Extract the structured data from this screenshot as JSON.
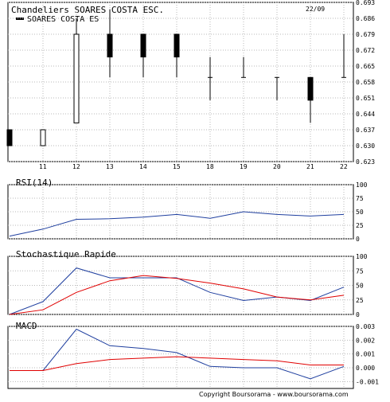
{
  "chart_data": [
    {
      "type": "candlestick",
      "title": "Chandeliers  SOARES COSTA ESC.",
      "date_label": "22/09",
      "legend": "SOARES COSTA ES",
      "x": [
        "11",
        "12",
        "13",
        "14",
        "15",
        "18",
        "19",
        "20",
        "21",
        "22"
      ],
      "ohlc": [
        {
          "x": "",
          "open": 0.637,
          "high": 0.637,
          "low": 0.63,
          "close": 0.63
        },
        {
          "x": "11",
          "open": 0.63,
          "high": 0.637,
          "low": 0.63,
          "close": 0.637
        },
        {
          "x": "12",
          "open": 0.64,
          "high": 0.686,
          "low": 0.64,
          "close": 0.679
        },
        {
          "x": "13",
          "open": 0.679,
          "high": 0.69,
          "low": 0.66,
          "close": 0.669
        },
        {
          "x": "14",
          "open": 0.679,
          "high": 0.679,
          "low": 0.66,
          "close": 0.669
        },
        {
          "x": "15",
          "open": 0.679,
          "high": 0.679,
          "low": 0.66,
          "close": 0.669
        },
        {
          "x": "18",
          "open": 0.66,
          "high": 0.669,
          "low": 0.65,
          "close": 0.66
        },
        {
          "x": "19",
          "open": 0.66,
          "high": 0.669,
          "low": 0.66,
          "close": 0.66
        },
        {
          "x": "20",
          "open": 0.66,
          "high": 0.66,
          "low": 0.65,
          "close": 0.66
        },
        {
          "x": "21",
          "open": 0.66,
          "high": 0.66,
          "low": 0.64,
          "close": 0.65
        },
        {
          "x": "22",
          "open": 0.66,
          "high": 0.679,
          "low": 0.66,
          "close": 0.66
        }
      ],
      "y_ticks": [
        "0.693",
        "0.686",
        "0.679",
        "0.672",
        "0.665",
        "0.658",
        "0.651",
        "0.644",
        "0.637",
        "0.630",
        "0.623"
      ],
      "ylim": [
        0.623,
        0.693
      ]
    },
    {
      "type": "line",
      "title": "RSI(14)",
      "y_ticks": [
        "100",
        "75",
        "50",
        "25",
        "0"
      ],
      "ylim": [
        0,
        100
      ],
      "series": [
        {
          "color": "#1f3f9f",
          "values": [
            5,
            18,
            36,
            37,
            40,
            45,
            38,
            50,
            45,
            42,
            45
          ]
        }
      ]
    },
    {
      "type": "line",
      "title": "Stochastique Rapide",
      "y_ticks": [
        "100",
        "75",
        "50",
        "25",
        "0"
      ],
      "ylim": [
        0,
        100
      ],
      "series": [
        {
          "color": "#1f3f9f",
          "values": [
            0,
            22,
            80,
            63,
            63,
            63,
            38,
            24,
            30,
            24,
            47
          ]
        },
        {
          "color": "#e00000",
          "values": [
            0,
            8,
            38,
            58,
            67,
            62,
            54,
            44,
            30,
            25,
            33
          ]
        }
      ]
    },
    {
      "type": "line",
      "title": "MACD",
      "y_ticks": [
        "0.003",
        "0.002",
        "0.001",
        "0.000",
        "-0.001"
      ],
      "ylim": [
        -0.0015,
        0.003
      ],
      "series": [
        {
          "color": "#1f3f9f",
          "values": [
            -0.0002,
            -0.0002,
            0.0028,
            0.0016,
            0.0014,
            0.0011,
            0.0001,
            0.0,
            0.0,
            -0.0008,
            0.0001
          ]
        },
        {
          "color": "#e00000",
          "values": [
            -0.0002,
            -0.0002,
            0.0003,
            0.0006,
            0.0007,
            0.0008,
            0.0007,
            0.0006,
            0.0005,
            0.0002,
            0.0002
          ]
        }
      ]
    }
  ],
  "copyright": "Copyright Boursorama - www.boursorama.com"
}
